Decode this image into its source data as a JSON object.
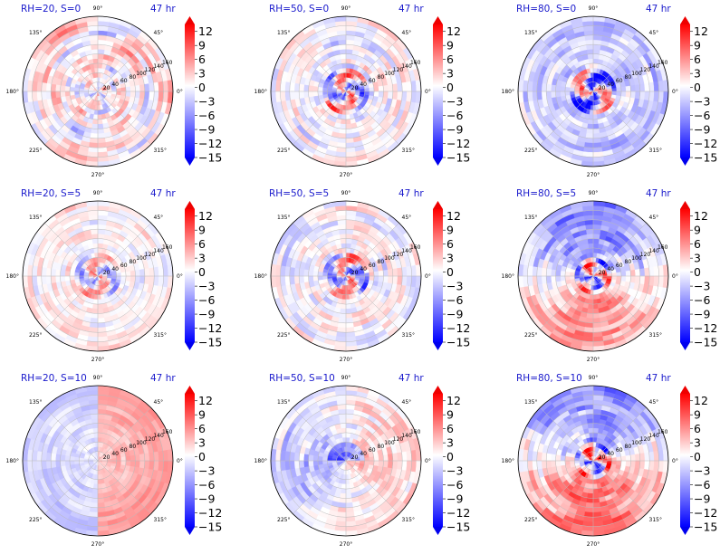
{
  "colors": {
    "title": "#1a1acc",
    "neg": "#0000ff",
    "pos": "#ff0000",
    "mid": "#ffffff",
    "grid": "#bbbbbb"
  },
  "chart_data": [
    {
      "type": "heatmap",
      "title": "RH=20, S=0",
      "time_label": "47 hr",
      "pattern": "cells",
      "bias": 0.05,
      "amp": 0.55,
      "seed": 11,
      "angle_ticks": [
        "0°",
        "45°",
        "90°",
        "135°",
        "180°",
        "225°",
        "270°",
        "315°"
      ],
      "radial_ticks": [
        "20",
        "40",
        "60",
        "80",
        "100",
        "120",
        "140",
        "160"
      ],
      "colorbar": {
        "ticks": [
          "12",
          "9",
          "6",
          "3",
          "0",
          "−3",
          "−6",
          "−9",
          "−12",
          "−15"
        ],
        "vmin": -15,
        "vmax": 13.5,
        "extend": "both"
      }
    },
    {
      "type": "heatmap",
      "title": "RH=50, S=0",
      "time_label": "47 hr",
      "pattern": "core",
      "bias": 0.0,
      "amp": 0.55,
      "seed": 23,
      "angle_ticks": [
        "0°",
        "45°",
        "90°",
        "135°",
        "180°",
        "225°",
        "270°",
        "315°"
      ],
      "radial_ticks": [
        "20",
        "40",
        "60",
        "80",
        "100",
        "120",
        "140",
        "160"
      ],
      "colorbar": {
        "ticks": [
          "12",
          "9",
          "6",
          "3",
          "0",
          "−3",
          "−6",
          "−9",
          "−12",
          "−15"
        ],
        "vmin": -15,
        "vmax": 13.5,
        "extend": "both"
      }
    },
    {
      "type": "heatmap",
      "title": "RH=80, S=0",
      "time_label": "47 hr",
      "pattern": "ring",
      "bias": -0.1,
      "amp": 0.6,
      "seed": 37,
      "angle_ticks": [
        "0°",
        "45°",
        "90°",
        "135°",
        "180°",
        "225°",
        "270°",
        "315°"
      ],
      "radial_ticks": [
        "20",
        "40",
        "60",
        "80",
        "100",
        "120",
        "140",
        "160"
      ],
      "colorbar": {
        "ticks": [
          "12",
          "9",
          "6",
          "3",
          "0",
          "−3",
          "−6",
          "−9",
          "−12",
          "−15"
        ],
        "vmin": -15,
        "vmax": 13.5,
        "extend": "both"
      }
    },
    {
      "type": "heatmap",
      "title": "RH=20, S=5",
      "time_label": "47 hr",
      "pattern": "core",
      "bias": 0.05,
      "amp": 0.4,
      "seed": 41,
      "angle_ticks": [
        "0°",
        "45°",
        "90°",
        "135°",
        "180°",
        "225°",
        "270°",
        "315°"
      ],
      "radial_ticks": [
        "20",
        "40",
        "60",
        "80",
        "100",
        "120",
        "140",
        "160"
      ],
      "colorbar": {
        "ticks": [
          "12",
          "9",
          "6",
          "3",
          "0",
          "−3",
          "−6",
          "−9",
          "−12",
          "−15"
        ],
        "vmin": -15,
        "vmax": 13.5,
        "extend": "both"
      }
    },
    {
      "type": "heatmap",
      "title": "RH=50, S=5",
      "time_label": "47 hr",
      "pattern": "core",
      "bias": 0.0,
      "amp": 0.55,
      "seed": 53,
      "angle_ticks": [
        "0°",
        "45°",
        "90°",
        "135°",
        "180°",
        "225°",
        "270°",
        "315°"
      ],
      "radial_ticks": [
        "20",
        "40",
        "60",
        "80",
        "100",
        "120",
        "140",
        "160"
      ],
      "colorbar": {
        "ticks": [
          "12",
          "9",
          "6",
          "3",
          "0",
          "−3",
          "−6",
          "−9",
          "−12",
          "−15"
        ],
        "vmin": -15,
        "vmax": 13.5,
        "extend": "both"
      }
    },
    {
      "type": "heatmap",
      "title": "RH=80, S=5",
      "time_label": "47 hr",
      "pattern": "dipole",
      "bias": 0.0,
      "amp": 0.6,
      "seed": 67,
      "angle_ticks": [
        "0°",
        "45°",
        "90°",
        "135°",
        "180°",
        "225°",
        "270°",
        "315°"
      ],
      "radial_ticks": [
        "20",
        "40",
        "60",
        "80",
        "100",
        "120",
        "140",
        "160"
      ],
      "colorbar": {
        "ticks": [
          "12",
          "9",
          "6",
          "3",
          "0",
          "−3",
          "−6",
          "−9",
          "−12",
          "−15"
        ],
        "vmin": -15,
        "vmax": 13.5,
        "extend": "both"
      }
    },
    {
      "type": "heatmap",
      "title": "RH=20, S=10",
      "time_label": "47 hr",
      "pattern": "halves",
      "bias": 0.0,
      "amp": 0.45,
      "seed": 71,
      "angle_ticks": [
        "0°",
        "45°",
        "90°",
        "135°",
        "180°",
        "225°",
        "270°",
        "315°"
      ],
      "radial_ticks": [
        "20",
        "40",
        "60",
        "80",
        "100",
        "120",
        "140",
        "160"
      ],
      "colorbar": {
        "ticks": [
          "12",
          "9",
          "6",
          "3",
          "0",
          "−3",
          "−6",
          "−9",
          "−12",
          "−15"
        ],
        "vmin": -15,
        "vmax": 13.5,
        "extend": "both"
      }
    },
    {
      "type": "heatmap",
      "title": "RH=50, S=10",
      "time_label": "47 hr",
      "pattern": "eastred",
      "bias": 0.0,
      "amp": 0.5,
      "seed": 83,
      "angle_ticks": [
        "0°",
        "45°",
        "90°",
        "135°",
        "180°",
        "225°",
        "270°",
        "315°"
      ],
      "radial_ticks": [
        "20",
        "40",
        "60",
        "80",
        "100",
        "120",
        "140",
        "160"
      ],
      "colorbar": {
        "ticks": [
          "12",
          "9",
          "6",
          "3",
          "0",
          "−3",
          "−6",
          "−9",
          "−12",
          "−15"
        ],
        "vmin": -15,
        "vmax": 13.5,
        "extend": "both"
      }
    },
    {
      "type": "heatmap",
      "title": "RH=80, S=10",
      "time_label": "47 hr",
      "pattern": "dipole",
      "bias": 0.05,
      "amp": 0.65,
      "seed": 97,
      "angle_ticks": [
        "0°",
        "45°",
        "90°",
        "135°",
        "180°",
        "225°",
        "270°",
        "315°"
      ],
      "radial_ticks": [
        "20",
        "40",
        "60",
        "80",
        "100",
        "120",
        "140",
        "160"
      ],
      "colorbar": {
        "ticks": [
          "12",
          "9",
          "6",
          "3",
          "0",
          "−3",
          "−6",
          "−9",
          "−12",
          "−15"
        ],
        "vmin": -15,
        "vmax": 13.5,
        "extend": "both"
      }
    }
  ]
}
